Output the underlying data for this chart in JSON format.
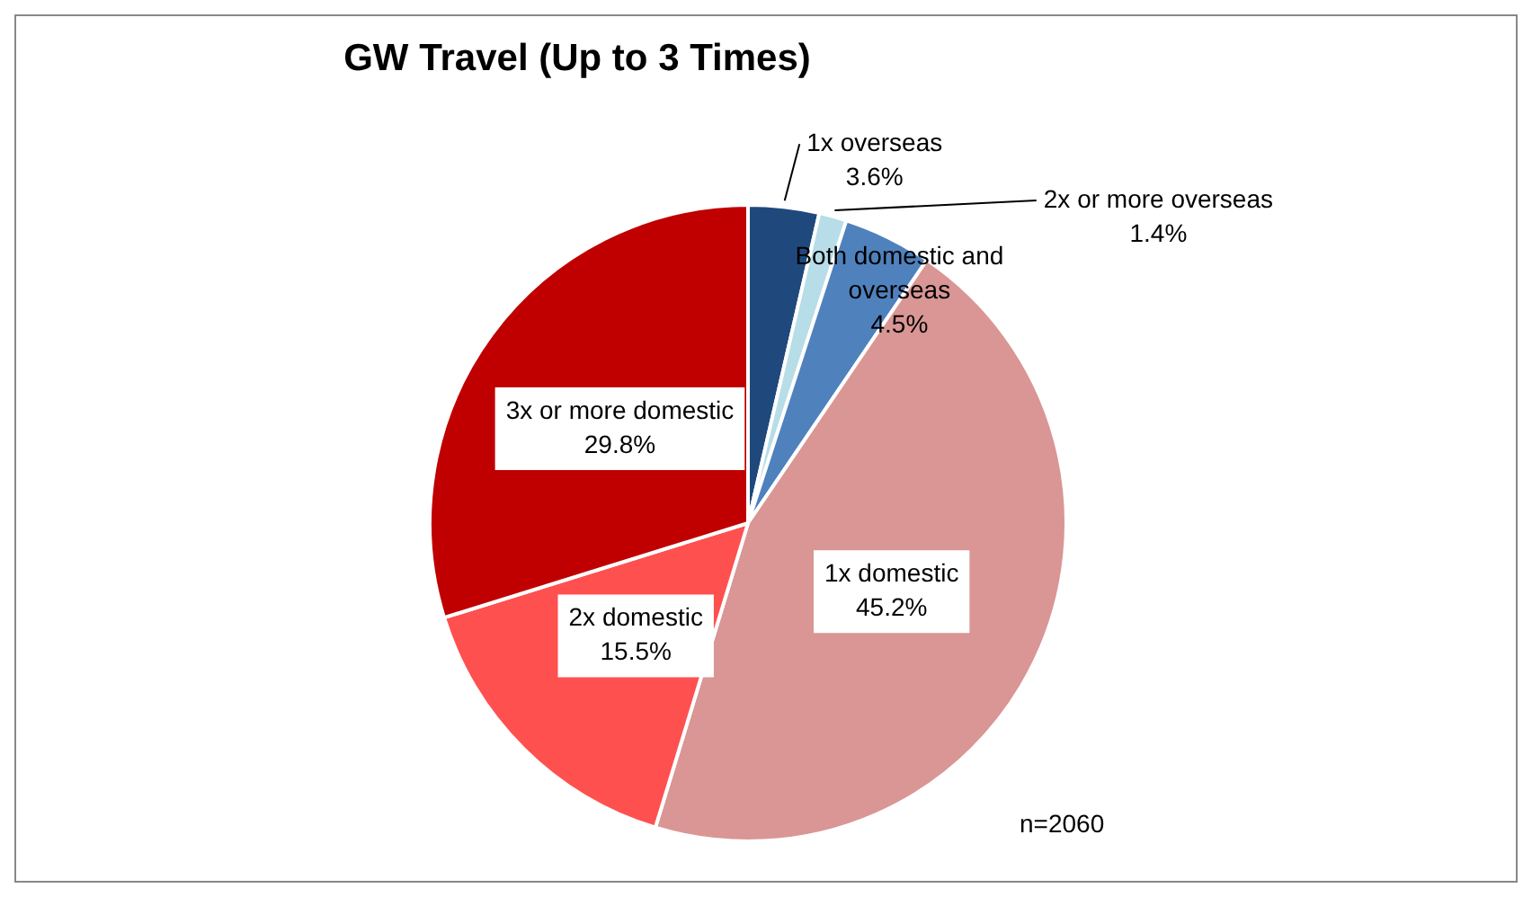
{
  "chart_data": {
    "type": "pie",
    "title": "GW Travel (Up to 3 Times)",
    "categories": [
      "1x overseas",
      "2x or more overseas",
      "Both domestic and overseas",
      "1x domestic",
      "2x domestic",
      "3x or more domestic"
    ],
    "values": [
      3.6,
      1.4,
      4.5,
      45.2,
      15.5,
      29.8
    ],
    "colors": [
      "#1f497d",
      "#b7dde8",
      "#4f81bd",
      "#d99694",
      "#ff5050",
      "#c00000"
    ],
    "value_labels": [
      "3.6%",
      "1.4%",
      "4.5%",
      "45.2%",
      "15.5%",
      "29.8%"
    ],
    "annotations": [
      "n=2060"
    ]
  }
}
